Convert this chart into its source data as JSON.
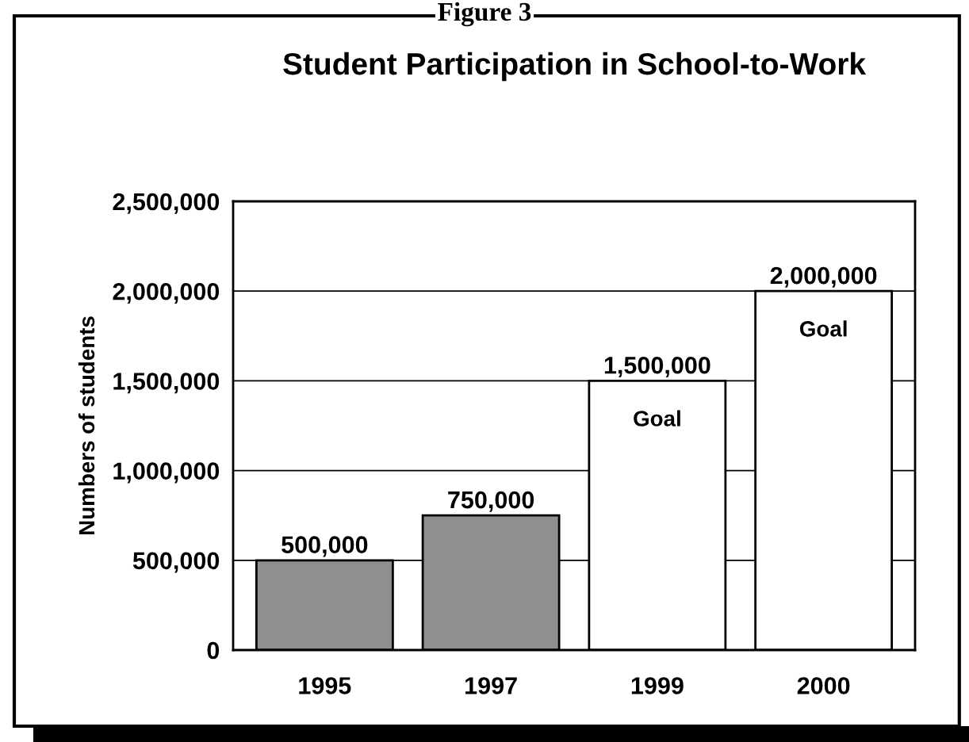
{
  "chart_data": {
    "type": "bar",
    "title": "Student Participation in School-to-Work",
    "ylabel": "Numbers of students",
    "categories": [
      "1995",
      "1997",
      "1999",
      "2000"
    ],
    "values": [
      500000,
      750000,
      1500000,
      2000000
    ],
    "colors": [
      "#8f8f8f",
      "#8f8f8f",
      "#ffffff",
      "#ffffff"
    ],
    "ylim": [
      0,
      2500000
    ],
    "yticks": [
      {
        "value": 0,
        "label": "0"
      },
      {
        "value": 500000,
        "label": "500,000"
      },
      {
        "value": 1000000,
        "label": "1,000,000"
      },
      {
        "value": 1500000,
        "label": "1,500,000"
      },
      {
        "value": 2000000,
        "label": "2,000,000"
      },
      {
        "value": 2500000,
        "label": "2,500,000"
      }
    ],
    "grid": "y",
    "data_labels": true,
    "value_labels": [
      "500,000",
      "750,000",
      "1,500,000",
      "2,000,000"
    ],
    "annotations": [
      "Figure 3",
      "Goal",
      "Goal"
    ]
  }
}
